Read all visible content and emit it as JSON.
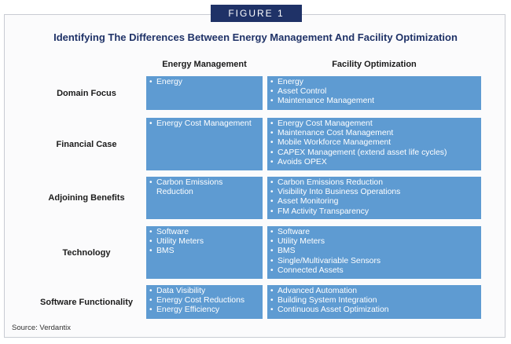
{
  "figure_label": "FIGURE 1",
  "title": "Identifying The Differences Between Energy Management And Facility Optimization",
  "columns": [
    "Energy Management",
    "Facility Optimization"
  ],
  "rows": [
    {
      "label": "Domain Focus",
      "energy_management": [
        "Energy"
      ],
      "facility_optimization": [
        "Energy",
        "Asset Control",
        "Maintenance Management"
      ]
    },
    {
      "label": "Financial Case",
      "energy_management": [
        "Energy Cost Management"
      ],
      "facility_optimization": [
        "Energy Cost Management",
        "Maintenance Cost Management",
        "Mobile Workforce Management",
        "CAPEX Management (extend asset life cycles)",
        "Avoids OPEX"
      ]
    },
    {
      "label": "Adjoining Benefits",
      "energy_management": [
        "Carbon Emissions Reduction"
      ],
      "facility_optimization": [
        "Carbon Emissions Reduction",
        "Visibility Into Business Operations",
        "Asset Monitoring",
        "FM Activity Transparency"
      ]
    },
    {
      "label": "Technology",
      "energy_management": [
        "Software",
        "Utility Meters",
        "BMS"
      ],
      "facility_optimization": [
        "Software",
        "Utility Meters",
        "BMS",
        "Single/Multivariable Sensors",
        "Connected Assets"
      ]
    },
    {
      "label": "Software Functionality",
      "energy_management": [
        "Data Visibility",
        "Energy Cost Reductions",
        "Energy Efficiency"
      ],
      "facility_optimization": [
        "Advanced Automation",
        "Building System Integration",
        "Continuous Asset Optimization"
      ]
    }
  ],
  "source": "Source: Verdantix",
  "colors": {
    "header_fill": "#1f3267",
    "cell_fill": "#5e9bd2",
    "title_color": "#1f3267"
  }
}
